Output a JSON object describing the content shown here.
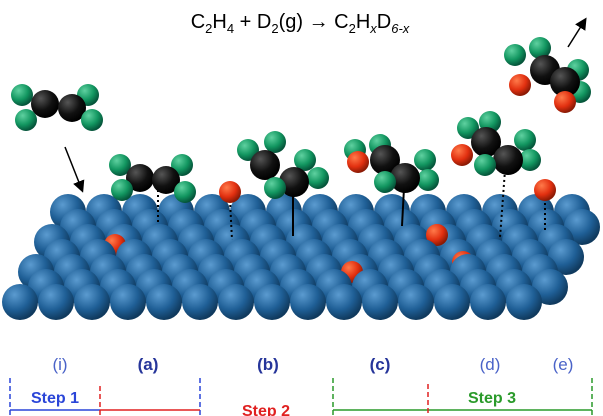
{
  "equation": {
    "parts": [
      "C",
      "2",
      "H",
      "4",
      " + D",
      "2",
      "(g) → C",
      "2",
      "H",
      "x",
      "D",
      "6-x"
    ]
  },
  "stages": [
    "(i)",
    "(a)",
    "(b)",
    "(c)",
    "(d)",
    "(e)"
  ],
  "steps": [
    "Step 1",
    "Step 2",
    "Step 3"
  ]
}
